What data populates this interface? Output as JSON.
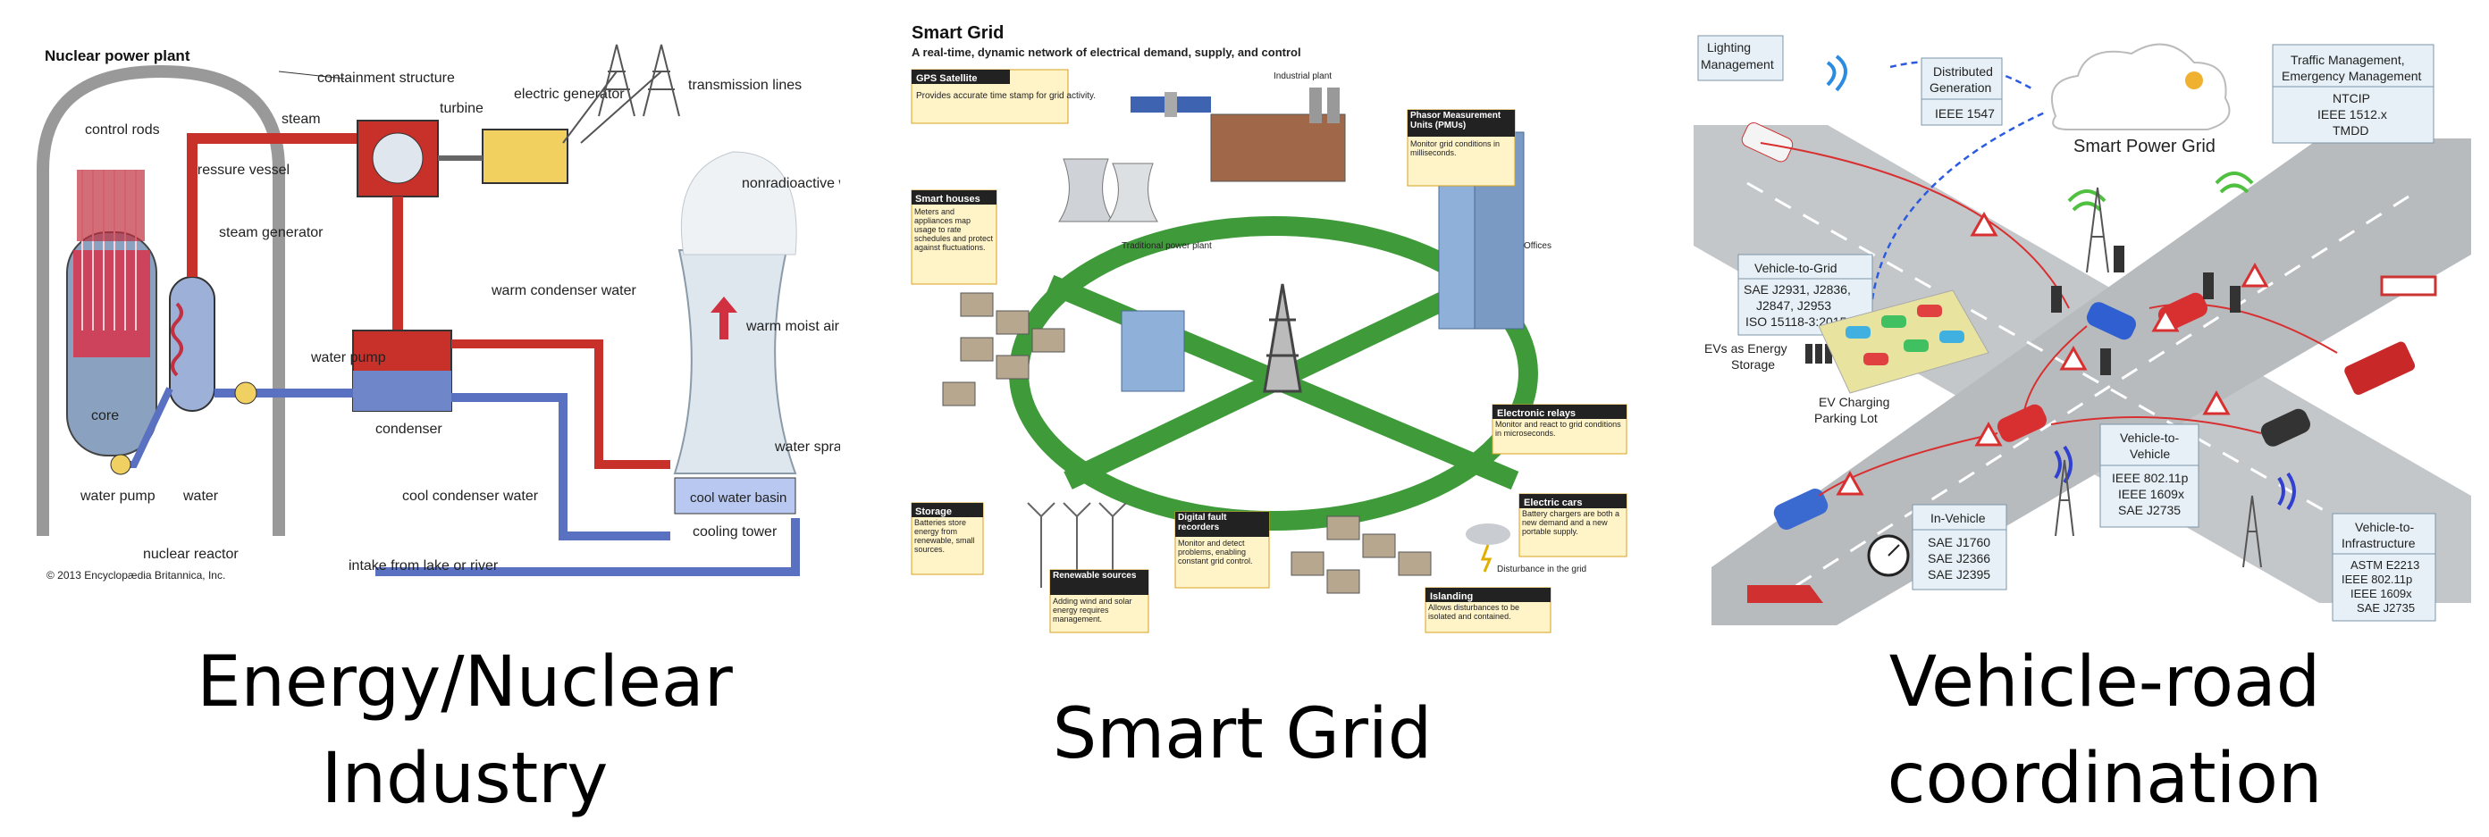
{
  "nuclear": {
    "title": "Nuclear power plant",
    "labels": {
      "containment": "containment structure",
      "steam": "steam",
      "turbine": "turbine",
      "generator": "electric generator",
      "transmission": "transmission lines",
      "control_rods": "control rods",
      "pressure_vessel": "pressure vessel",
      "steam_generator": "steam generator",
      "warm_condenser": "warm condenser water",
      "nonradioactive": "nonradioactive water vapour",
      "warm_moist_air": "warm moist air",
      "water_pump_left": "water pump",
      "water": "water",
      "water_pump_mid": "water pump",
      "condenser": "condenser",
      "water_spray": "water spray",
      "core": "core",
      "cool_condenser": "cool condenser water",
      "cool_basin": "cool water basin",
      "cooling_tower": "cooling tower",
      "nuclear_reactor": "nuclear reactor",
      "intake": "intake from lake or river",
      "copyright": "© 2013 Encyclopædia Britannica, Inc."
    }
  },
  "smartgrid": {
    "title": "Smart Grid",
    "subtitle": "A real-time, dynamic network of electrical demand, supply, and control",
    "boxes": {
      "gps_title": "GPS Satellite",
      "gps_body": "Provides accurate time stamp for grid activity.",
      "houses_title": "Smart houses",
      "houses_body": "Meters and appliances map usage to rate schedules and protect against fluctuations.",
      "pmu_title": "Phasor Measurement Units (PMUs)",
      "pmu_body": "Monitor grid conditions in milliseconds.",
      "relays_title": "Electronic relays",
      "relays_body": "Monitor and react to grid conditions in microseconds.",
      "cars_title": "Electric cars",
      "cars_body": "Battery chargers are both a new demand and a new portable supply.",
      "storage_title": "Storage",
      "storage_body": "Batteries store energy from renewable, small sources.",
      "fault_title": "Digital fault recorders",
      "fault_body": "Monitor and detect problems, enabling constant grid control.",
      "renew_title": "Renewable sources",
      "renew_body": "Adding wind and solar energy requires management.",
      "island_title": "Islanding",
      "island_body": "Allows disturbances to be isolated and contained."
    },
    "small": {
      "industrial": "Industrial plant",
      "traditional": "Traditional power plant",
      "offices": "Offices",
      "disturbance": "Disturbance in the grid"
    }
  },
  "v2x": {
    "lighting": [
      "Lighting",
      "Management"
    ],
    "distributed": [
      "Distributed",
      "Generation"
    ],
    "ieee1547": "IEEE 1547",
    "smart_power_grid": "Smart Power Grid",
    "traffic_title": [
      "Traffic Management,",
      "Emergency Management"
    ],
    "traffic_std": [
      "NTCIP",
      "IEEE 1512.x",
      "TMDD"
    ],
    "v2g_title": "Vehicle-to-Grid",
    "v2g_std": [
      "SAE J2931, J2836,",
      "J2847, J2953",
      "ISO 15118-3:2015"
    ],
    "ev_storage": [
      "EVs as Energy",
      "Storage"
    ],
    "ev_parking": [
      "EV Charging",
      "Parking Lot"
    ],
    "v2v_title": [
      "Vehicle-to-",
      "Vehicle"
    ],
    "v2v_std": [
      "IEEE 802.11p",
      "IEEE 1609x",
      "SAE J2735"
    ],
    "invehicle_title": "In-Vehicle",
    "invehicle_std": [
      "SAE J1760",
      "SAE J2366",
      "SAE J2395"
    ],
    "v2i_title": [
      "Vehicle-to-",
      "Infrastructure"
    ],
    "v2i_std": [
      "ASTM E2213",
      "IEEE 802.11p",
      "IEEE 1609x",
      "SAE J2735"
    ]
  },
  "captions": {
    "left": [
      "Energy/Nuclear",
      "Industry"
    ],
    "middle": "Smart Grid",
    "right": [
      "Vehicle-road",
      "coordination"
    ]
  }
}
